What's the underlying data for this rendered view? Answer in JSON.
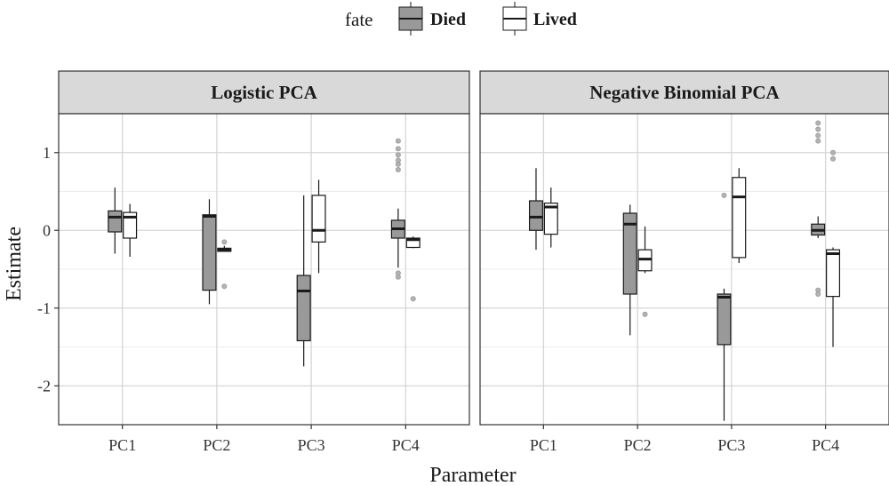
{
  "chart_data": {
    "type": "boxplot",
    "xlabel": "Parameter",
    "ylabel": "Estimate",
    "ylim": [
      -2.5,
      1.5
    ],
    "yticks": [
      -2,
      -1,
      0,
      1
    ],
    "categories": [
      "PC1",
      "PC2",
      "PC3",
      "PC4"
    ],
    "legend": {
      "title": "fate",
      "placement": "top",
      "entries": [
        {
          "name": "Died",
          "fill": "#999999"
        },
        {
          "name": "Lived",
          "fill": "#ffffff"
        }
      ]
    },
    "facets": [
      {
        "label": "Logistic PCA",
        "groups": [
          {
            "category": "PC1",
            "fate": "Died",
            "whisker_low": -0.3,
            "q1": -0.02,
            "median": 0.17,
            "q3": 0.25,
            "whisker_high": 0.55,
            "outliers": []
          },
          {
            "category": "PC1",
            "fate": "Lived",
            "whisker_low": -0.34,
            "q1": -0.1,
            "median": 0.17,
            "q3": 0.23,
            "whisker_high": 0.34,
            "outliers": []
          },
          {
            "category": "PC2",
            "fate": "Died",
            "whisker_low": -0.95,
            "q1": -0.77,
            "median": 0.18,
            "q3": 0.2,
            "whisker_high": 0.4,
            "outliers": []
          },
          {
            "category": "PC2",
            "fate": "Lived",
            "whisker_low": -0.27,
            "q1": -0.27,
            "median": -0.25,
            "q3": -0.23,
            "whisker_high": -0.2,
            "outliers": [
              -0.15,
              -0.72
            ]
          },
          {
            "category": "PC3",
            "fate": "Died",
            "whisker_low": -1.75,
            "q1": -1.42,
            "median": -0.78,
            "q3": -0.58,
            "whisker_high": 0.45,
            "outliers": []
          },
          {
            "category": "PC3",
            "fate": "Lived",
            "whisker_low": -0.55,
            "q1": -0.15,
            "median": 0.0,
            "q3": 0.45,
            "whisker_high": 0.65,
            "outliers": []
          },
          {
            "category": "PC4",
            "fate": "Died",
            "whisker_low": -0.48,
            "q1": -0.1,
            "median": 0.02,
            "q3": 0.13,
            "whisker_high": 0.28,
            "outliers": [
              0.78,
              0.85,
              0.9,
              0.97,
              1.05,
              1.15,
              -0.55,
              -0.6
            ]
          },
          {
            "category": "PC4",
            "fate": "Lived",
            "whisker_low": -0.23,
            "q1": -0.22,
            "median": -0.12,
            "q3": -0.1,
            "whisker_high": -0.08,
            "outliers": [
              -0.88
            ]
          }
        ]
      },
      {
        "label": "Negative Binomial PCA",
        "groups": [
          {
            "category": "PC1",
            "fate": "Died",
            "whisker_low": -0.25,
            "q1": 0.0,
            "median": 0.17,
            "q3": 0.38,
            "whisker_high": 0.8,
            "outliers": []
          },
          {
            "category": "PC1",
            "fate": "Lived",
            "whisker_low": -0.22,
            "q1": -0.05,
            "median": 0.3,
            "q3": 0.35,
            "whisker_high": 0.55,
            "outliers": []
          },
          {
            "category": "PC2",
            "fate": "Died",
            "whisker_low": -1.35,
            "q1": -0.82,
            "median": 0.08,
            "q3": 0.22,
            "whisker_high": 0.33,
            "outliers": []
          },
          {
            "category": "PC2",
            "fate": "Lived",
            "whisker_low": -0.55,
            "q1": -0.52,
            "median": -0.37,
            "q3": -0.25,
            "whisker_high": 0.05,
            "outliers": [
              -1.08
            ]
          },
          {
            "category": "PC3",
            "fate": "Died",
            "whisker_low": -2.45,
            "q1": -1.47,
            "median": -0.86,
            "q3": -0.82,
            "whisker_high": -0.75,
            "outliers": [
              0.45
            ]
          },
          {
            "category": "PC3",
            "fate": "Lived",
            "whisker_low": -0.42,
            "q1": -0.35,
            "median": 0.43,
            "q3": 0.68,
            "whisker_high": 0.8,
            "outliers": []
          },
          {
            "category": "PC4",
            "fate": "Died",
            "whisker_low": -0.1,
            "q1": -0.06,
            "median": 0.0,
            "q3": 0.08,
            "whisker_high": 0.18,
            "outliers": [
              1.15,
              1.22,
              1.3,
              1.38,
              -0.77,
              -0.82
            ]
          },
          {
            "category": "PC4",
            "fate": "Lived",
            "whisker_low": -1.5,
            "q1": -0.85,
            "median": -0.3,
            "q3": -0.25,
            "whisker_high": -0.22,
            "outliers": [
              0.92,
              1.0
            ]
          }
        ]
      }
    ]
  }
}
